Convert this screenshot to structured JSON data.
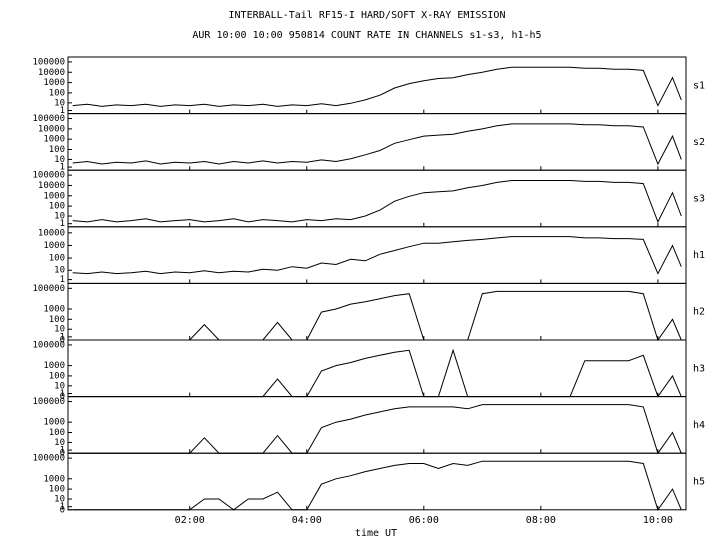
{
  "title": "INTERBALL-Tail RF15-I HARD/SOFT X-RAY EMISSION",
  "subtitle": "AUR 10:00 10:00 950814  COUNT RATE IN CHANNELS s1-s3, h1-h5",
  "x_label": "time UT",
  "xlim": [
    -0.08,
    10.48
  ],
  "xticks": [
    {
      "value": 2,
      "label": "02:00"
    },
    {
      "value": 4,
      "label": "04:00"
    },
    {
      "value": 6,
      "label": "06:00"
    },
    {
      "value": 8,
      "label": "08:00"
    },
    {
      "value": 10,
      "label": "10:00"
    }
  ],
  "x": [
    0,
    0.25,
    0.5,
    0.75,
    1,
    1.25,
    1.5,
    1.75,
    2,
    2.25,
    2.5,
    2.75,
    3,
    3.25,
    3.5,
    3.75,
    4,
    4.25,
    4.5,
    4.75,
    5,
    5.25,
    5.5,
    5.75,
    6,
    6.25,
    6.5,
    6.75,
    7,
    7.25,
    7.5,
    7.75,
    8,
    8.25,
    8.5,
    8.75,
    9,
    9.25,
    9.5,
    9.75,
    10,
    10.25,
    10.4
  ],
  "chart_data": [
    {
      "type": "line",
      "name": "s1",
      "color": "#000000",
      "yscale": "log1p",
      "ylim": [
        0,
        300000
      ],
      "yticks": [
        1,
        10,
        100,
        1000,
        10000,
        100000
      ],
      "values": [
        5,
        7,
        4,
        6,
        5,
        7,
        4,
        6,
        5,
        7,
        4,
        6,
        5,
        7,
        4,
        6,
        5,
        8,
        5,
        9,
        20,
        60,
        300,
        800,
        1500,
        2500,
        3000,
        6000,
        10000,
        20000,
        30000,
        30000,
        30000,
        30000,
        30000,
        25000,
        25000,
        20000,
        20000,
        15000,
        5,
        3000,
        20
      ]
    },
    {
      "type": "line",
      "name": "s2",
      "color": "#000000",
      "yscale": "log1p",
      "ylim": [
        0,
        300000
      ],
      "yticks": [
        1,
        10,
        100,
        1000,
        10000,
        100000
      ],
      "values": [
        4,
        6,
        3,
        5,
        4,
        7,
        3,
        5,
        4,
        6,
        3,
        6,
        4,
        7,
        4,
        6,
        5,
        9,
        6,
        12,
        30,
        80,
        400,
        900,
        2000,
        2500,
        3000,
        6000,
        10000,
        20000,
        30000,
        30000,
        30000,
        30000,
        30000,
        25000,
        25000,
        20000,
        20000,
        15000,
        3,
        2000,
        10
      ]
    },
    {
      "type": "line",
      "name": "s3",
      "color": "#000000",
      "yscale": "log1p",
      "ylim": [
        0,
        300000
      ],
      "yticks": [
        1,
        10,
        100,
        1000,
        10000,
        100000
      ],
      "values": [
        3,
        2,
        4,
        2,
        3,
        5,
        2,
        3,
        4,
        2,
        3,
        5,
        2,
        4,
        3,
        2,
        4,
        3,
        5,
        4,
        10,
        40,
        300,
        900,
        2000,
        2500,
        3000,
        6000,
        10000,
        20000,
        30000,
        30000,
        30000,
        30000,
        30000,
        25000,
        25000,
        20000,
        20000,
        15000,
        2,
        2000,
        10
      ]
    },
    {
      "type": "line",
      "name": "h1",
      "color": "#000000",
      "yscale": "log1p",
      "ylim": [
        0,
        30000
      ],
      "yticks": [
        1,
        10,
        100,
        1000,
        10000
      ],
      "values": [
        6,
        5,
        7,
        5,
        6,
        8,
        5,
        7,
        6,
        9,
        6,
        8,
        7,
        12,
        10,
        20,
        15,
        40,
        30,
        80,
        60,
        200,
        400,
        800,
        1500,
        1500,
        2000,
        2500,
        3000,
        4000,
        5000,
        5000,
        5000,
        5000,
        5000,
        4000,
        4000,
        3500,
        3500,
        3000,
        5,
        1000,
        20
      ]
    },
    {
      "type": "line",
      "name": "h2",
      "color": "#000000",
      "yscale": "log1p",
      "ylim": [
        0,
        300000
      ],
      "yticks": [
        0,
        1,
        10,
        100,
        1000,
        100000
      ],
      "values": [
        0,
        0,
        0,
        0,
        0,
        0,
        0,
        0,
        0,
        30,
        0,
        0,
        0,
        0,
        50,
        0,
        0,
        500,
        1000,
        3000,
        5000,
        10000,
        20000,
        30000,
        0,
        0,
        0,
        0,
        30000,
        50000,
        50000,
        50000,
        50000,
        50000,
        50000,
        50000,
        50000,
        50000,
        50000,
        30000,
        0,
        100,
        0
      ]
    },
    {
      "type": "line",
      "name": "h3",
      "color": "#000000",
      "yscale": "log1p",
      "ylim": [
        0,
        300000
      ],
      "yticks": [
        0,
        1,
        10,
        100,
        1000,
        100000
      ],
      "values": [
        0,
        0,
        0,
        0,
        0,
        0,
        0,
        0,
        0,
        0,
        0,
        0,
        0,
        0,
        50,
        0,
        0,
        300,
        1000,
        2000,
        5000,
        10000,
        20000,
        30000,
        0,
        0,
        30000,
        0,
        0,
        0,
        0,
        0,
        0,
        0,
        0,
        3000,
        3000,
        3000,
        3000,
        10000,
        0,
        100,
        0
      ]
    },
    {
      "type": "line",
      "name": "h4",
      "color": "#000000",
      "yscale": "log1p",
      "ylim": [
        0,
        300000
      ],
      "yticks": [
        0,
        1,
        10,
        100,
        1000,
        100000
      ],
      "values": [
        0,
        0,
        0,
        0,
        0,
        0,
        0,
        0,
        0,
        30,
        0,
        0,
        0,
        0,
        50,
        0,
        0,
        300,
        1000,
        2000,
        5000,
        10000,
        20000,
        30000,
        30000,
        30000,
        30000,
        20000,
        50000,
        50000,
        50000,
        50000,
        50000,
        50000,
        50000,
        50000,
        50000,
        50000,
        50000,
        30000,
        0,
        100,
        0
      ]
    },
    {
      "type": "line",
      "name": "h5",
      "color": "#000000",
      "yscale": "log1p",
      "ylim": [
        0,
        300000
      ],
      "yticks": [
        0,
        1,
        10,
        100,
        1000,
        100000
      ],
      "values": [
        0,
        0,
        0,
        0,
        0,
        0,
        0,
        0,
        0,
        10,
        10,
        0,
        10,
        10,
        50,
        0,
        0,
        300,
        1000,
        2000,
        5000,
        10000,
        20000,
        30000,
        30000,
        10000,
        30000,
        20000,
        50000,
        50000,
        50000,
        50000,
        50000,
        50000,
        50000,
        50000,
        50000,
        50000,
        50000,
        30000,
        0,
        100,
        0
      ]
    }
  ]
}
